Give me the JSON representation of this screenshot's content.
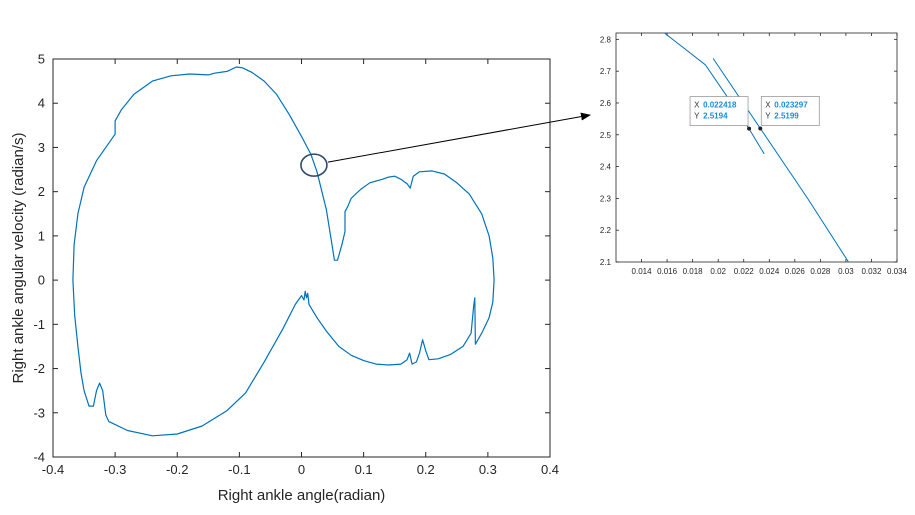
{
  "chart_data": [
    {
      "type": "line",
      "title": "",
      "xlabel": "Right ankle angle(radian)",
      "ylabel": "Right ankle angular velocity (radian/s)",
      "xlim": [
        -0.4,
        0.4
      ],
      "ylim": [
        -4,
        5
      ],
      "xticks": [
        "-0.4",
        "-0.3",
        "-0.2",
        "-0.1",
        "0",
        "0.1",
        "0.2",
        "0.3",
        "0.4"
      ],
      "yticks": [
        "-4",
        "-3",
        "-2",
        "-1",
        "0",
        "1",
        "2",
        "3",
        "4",
        "5"
      ],
      "series_color": "#0072BD",
      "grid": false,
      "series": [
        {
          "points": [
            [
              0.025,
              2.45
            ],
            [
              0.04,
              1.6
            ],
            [
              0.048,
              0.9
            ],
            [
              0.053,
              0.45
            ],
            [
              0.058,
              0.45
            ],
            [
              0.065,
              0.8
            ],
            [
              0.07,
              1.1
            ],
            [
              0.07,
              1.55
            ],
            [
              0.074,
              1.65
            ],
            [
              0.08,
              1.85
            ],
            [
              0.095,
              2.05
            ],
            [
              0.11,
              2.2
            ],
            [
              0.13,
              2.28
            ],
            [
              0.14,
              2.33
            ],
            [
              0.15,
              2.35
            ],
            [
              0.16,
              2.28
            ],
            [
              0.17,
              2.18
            ],
            [
              0.175,
              2.08
            ],
            [
              0.18,
              2.35
            ],
            [
              0.19,
              2.45
            ],
            [
              0.21,
              2.47
            ],
            [
              0.23,
              2.4
            ],
            [
              0.25,
              2.2
            ],
            [
              0.27,
              1.95
            ],
            [
              0.29,
              1.5
            ],
            [
              0.302,
              1.0
            ],
            [
              0.308,
              0.5
            ],
            [
              0.31,
              0.0
            ],
            [
              0.308,
              -0.5
            ],
            [
              0.302,
              -0.85
            ],
            [
              0.29,
              -1.2
            ],
            [
              0.28,
              -1.45
            ],
            [
              0.279,
              -0.4
            ],
            [
              0.277,
              -0.6
            ],
            [
              0.273,
              -1.2
            ],
            [
              0.26,
              -1.5
            ],
            [
              0.24,
              -1.68
            ],
            [
              0.22,
              -1.78
            ],
            [
              0.205,
              -1.8
            ],
            [
              0.2,
              -1.6
            ],
            [
              0.195,
              -1.35
            ],
            [
              0.19,
              -1.65
            ],
            [
              0.185,
              -1.85
            ],
            [
              0.178,
              -1.9
            ],
            [
              0.174,
              -1.65
            ],
            [
              0.17,
              -1.8
            ],
            [
              0.16,
              -1.9
            ],
            [
              0.14,
              -1.92
            ],
            [
              0.12,
              -1.9
            ],
            [
              0.1,
              -1.82
            ],
            [
              0.08,
              -1.7
            ],
            [
              0.06,
              -1.5
            ],
            [
              0.04,
              -1.15
            ],
            [
              0.025,
              -0.85
            ],
            [
              0.012,
              -0.55
            ],
            [
              0.01,
              -0.3
            ],
            [
              0.008,
              -0.4
            ],
            [
              0.006,
              -0.25
            ],
            [
              0.004,
              -0.45
            ],
            [
              0.0,
              -0.35
            ],
            [
              -0.01,
              -0.55
            ],
            [
              -0.03,
              -1.1
            ],
            [
              -0.06,
              -1.85
            ],
            [
              -0.09,
              -2.55
            ],
            [
              -0.12,
              -2.95
            ],
            [
              -0.16,
              -3.3
            ],
            [
              -0.2,
              -3.48
            ],
            [
              -0.24,
              -3.52
            ],
            [
              -0.28,
              -3.4
            ],
            [
              -0.31,
              -3.2
            ],
            [
              -0.315,
              -3.05
            ],
            [
              -0.32,
              -2.5
            ],
            [
              -0.325,
              -2.33
            ],
            [
              -0.33,
              -2.5
            ],
            [
              -0.335,
              -2.85
            ],
            [
              -0.342,
              -2.85
            ],
            [
              -0.35,
              -2.5
            ],
            [
              -0.355,
              -2.1
            ],
            [
              -0.36,
              -1.5
            ],
            [
              -0.365,
              -0.8
            ],
            [
              -0.368,
              0.0
            ],
            [
              -0.366,
              0.8
            ],
            [
              -0.36,
              1.5
            ],
            [
              -0.35,
              2.1
            ],
            [
              -0.33,
              2.7
            ],
            [
              -0.3,
              3.3
            ],
            [
              -0.3,
              3.6
            ],
            [
              -0.29,
              3.85
            ],
            [
              -0.27,
              4.2
            ],
            [
              -0.24,
              4.5
            ],
            [
              -0.21,
              4.62
            ],
            [
              -0.18,
              4.66
            ],
            [
              -0.15,
              4.64
            ],
            [
              -0.14,
              4.68
            ],
            [
              -0.12,
              4.72
            ],
            [
              -0.105,
              4.82
            ],
            [
              -0.095,
              4.8
            ],
            [
              -0.08,
              4.7
            ],
            [
              -0.06,
              4.5
            ],
            [
              -0.04,
              4.2
            ],
            [
              -0.02,
              3.75
            ],
            [
              0.0,
              3.25
            ],
            [
              0.015,
              2.85
            ],
            [
              0.025,
              2.45
            ]
          ]
        }
      ],
      "annotation": "circle at (0.02, 2.6) with arrow to zoom inset"
    },
    {
      "type": "line",
      "title": "",
      "xlim": [
        0.012,
        0.034
      ],
      "ylim": [
        2.1,
        2.82
      ],
      "xticks": [
        "0.014",
        "0.016",
        "0.018",
        "0.02",
        "0.022",
        "0.024",
        "0.026",
        "0.028",
        "0.03",
        "0.032",
        "0.034"
      ],
      "yticks": [
        "2.1",
        "2.2",
        "2.3",
        "2.4",
        "2.5",
        "2.6",
        "2.7",
        "2.8"
      ],
      "series": [
        {
          "points": [
            [
              0.0158,
              2.82
            ],
            [
              0.019,
              2.72
            ],
            [
              0.0224,
              2.52
            ],
            [
              0.0236,
              2.44
            ]
          ]
        },
        {
          "points": [
            [
              0.0196,
              2.74
            ],
            [
              0.0233,
              2.52
            ],
            [
              0.027,
              2.3
            ],
            [
              0.0302,
              2.1
            ]
          ]
        }
      ],
      "datatips": [
        {
          "x_label": "X",
          "x_value": "0.022418",
          "y_label": "Y",
          "y_value": "2.5194",
          "x": 0.022418,
          "y": 2.5194
        },
        {
          "x_label": "X",
          "x_value": "0.023297",
          "y_label": "Y",
          "y_value": "2.5199",
          "x": 0.023297,
          "y": 2.5199
        }
      ]
    }
  ]
}
